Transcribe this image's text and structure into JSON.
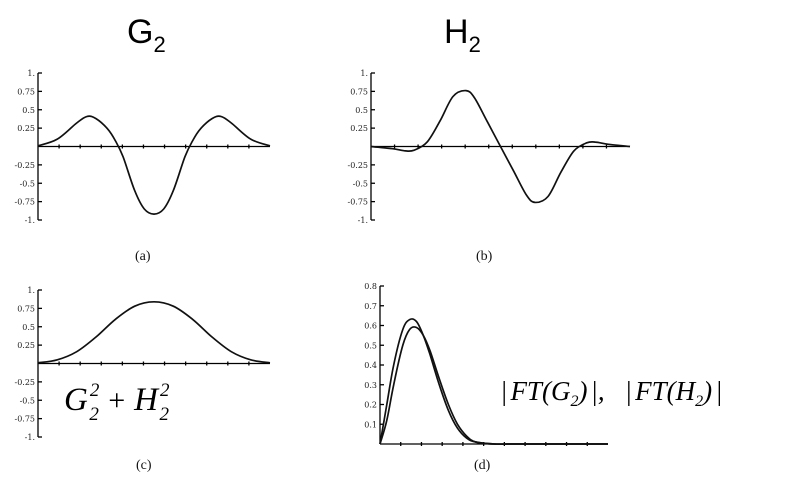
{
  "titles": {
    "g2": "G",
    "g2_sub": "2",
    "h2": "H",
    "h2_sub": "2"
  },
  "captions": {
    "a": "(a)",
    "b": "(b)",
    "c": "(c)",
    "d": "(d)"
  },
  "formulas": {
    "c": {
      "g": "G",
      "h": "H",
      "sub": "2",
      "sup": "2",
      "plus": " + "
    },
    "d": {
      "bar": "|",
      "ft": "FT",
      "g": "G",
      "h": "H",
      "sub": "2",
      "sep": ",",
      "open": "(",
      "close": ")"
    }
  },
  "chart_data": [
    {
      "id": "a",
      "type": "line",
      "title": "G₂",
      "ylim": [
        -1,
        1
      ],
      "xlim": [
        -3,
        3
      ],
      "yticks": [
        1,
        0.75,
        0.5,
        0.25,
        -0.25,
        -0.5,
        -0.75,
        -1
      ],
      "yticklabels": [
        "1.",
        "0.75",
        "0.5",
        "0.25",
        "-0.25",
        "-0.5",
        "-0.75",
        "-1."
      ],
      "series": [
        {
          "x": [
            -3,
            -2.5,
            -2,
            -1.73,
            -1.5,
            -1.2,
            -1,
            -0.8,
            -0.5,
            -0.25,
            0,
            0.25,
            0.5,
            0.8,
            1,
            1.2,
            1.5,
            1.73,
            2,
            2.5,
            3
          ],
          "y": [
            0.01,
            0.1,
            0.32,
            0.41,
            0.38,
            0.24,
            0.08,
            -0.14,
            -0.6,
            -0.85,
            -0.92,
            -0.85,
            -0.6,
            -0.14,
            0.08,
            0.24,
            0.38,
            0.41,
            0.32,
            0.1,
            0.01
          ]
        }
      ]
    },
    {
      "id": "b",
      "type": "line",
      "title": "H₂",
      "ylim": [
        -1,
        1
      ],
      "xlim": [
        -3,
        3
      ],
      "yticks": [
        1,
        0.75,
        0.5,
        0.25,
        -0.25,
        -0.5,
        -0.75,
        -1
      ],
      "yticklabels": [
        "1.",
        "0.75",
        "0.5",
        "0.25",
        "-0.25",
        "-0.5",
        "-0.75",
        "-1."
      ],
      "series": [
        {
          "x": [
            -3,
            -2.5,
            -2.2,
            -2,
            -1.7,
            -1.4,
            -1.1,
            -0.8,
            -0.6,
            -0.3,
            0,
            0.3,
            0.6,
            0.8,
            1.1,
            1.4,
            1.7,
            2,
            2.2,
            2.5,
            3
          ],
          "y": [
            0,
            -0.03,
            -0.06,
            -0.05,
            0.06,
            0.35,
            0.68,
            0.76,
            0.66,
            0.33,
            0,
            -0.33,
            -0.66,
            -0.76,
            -0.68,
            -0.35,
            -0.06,
            0.05,
            0.06,
            0.03,
            0
          ]
        }
      ]
    },
    {
      "id": "c",
      "type": "line",
      "formula": "G₂² + H₂²",
      "ylim": [
        -1,
        1
      ],
      "xlim": [
        -3,
        3
      ],
      "yticks": [
        1,
        0.75,
        0.5,
        0.25,
        -0.25,
        -0.5,
        -0.75,
        -1
      ],
      "yticklabels": [
        "1.",
        "0.75",
        "0.5",
        "0.25",
        "-0.25",
        "-0.5",
        "-0.75",
        "-1."
      ],
      "series": [
        {
          "x": [
            -3,
            -2.5,
            -2,
            -1.5,
            -1,
            -0.5,
            0,
            0.5,
            1,
            1.5,
            2,
            2.5,
            3
          ],
          "y": [
            0.01,
            0.05,
            0.16,
            0.36,
            0.6,
            0.78,
            0.84,
            0.78,
            0.6,
            0.36,
            0.16,
            0.05,
            0.01
          ]
        }
      ]
    },
    {
      "id": "d",
      "type": "line",
      "formula": "|FT(G₂)|,  |FT(H₂)|",
      "ylim": [
        0,
        0.8
      ],
      "xlim": [
        0,
        10
      ],
      "yticks": [
        0.8,
        0.7,
        0.6,
        0.5,
        0.4,
        0.3,
        0.2,
        0.1
      ],
      "yticklabels": [
        "0.8",
        "0.7",
        "0.6",
        "0.5",
        "0.4",
        "0.3",
        "0.2",
        "0.1"
      ],
      "series": [
        {
          "x": [
            0,
            0.3,
            0.6,
            1,
            1.3,
            1.6,
            1.9,
            2.2,
            2.6,
            3,
            3.4,
            3.8,
            4.2,
            5,
            6,
            10
          ],
          "y": [
            0,
            0.2,
            0.4,
            0.58,
            0.63,
            0.62,
            0.55,
            0.45,
            0.3,
            0.17,
            0.08,
            0.03,
            0.01,
            0,
            0,
            0
          ]
        },
        {
          "x": [
            0,
            0.3,
            0.6,
            1,
            1.3,
            1.6,
            1.9,
            2.2,
            2.6,
            3,
            3.4,
            3.8,
            4.2,
            5,
            6,
            10
          ],
          "y": [
            0,
            0.12,
            0.3,
            0.5,
            0.58,
            0.59,
            0.55,
            0.47,
            0.33,
            0.2,
            0.1,
            0.04,
            0.01,
            0,
            0,
            0
          ]
        }
      ]
    }
  ]
}
